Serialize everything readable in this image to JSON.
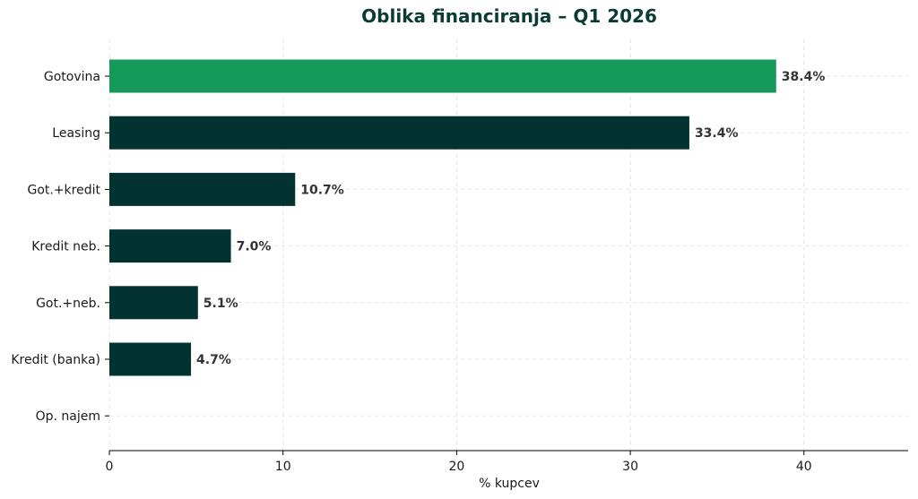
{
  "chart_data": {
    "type": "bar",
    "orientation": "horizontal",
    "title": "Oblika financiranja – Q1 2026",
    "xlabel": "% kupcev",
    "ylabel": "",
    "categories": [
      "Gotovina",
      "Leasing",
      "Got.+kredit",
      "Kredit neb.",
      "Got.+neb.",
      "Kredit (banka)",
      "Op. najem"
    ],
    "values": [
      38.4,
      33.4,
      10.7,
      7.0,
      5.1,
      4.7,
      0
    ],
    "data_labels": [
      "38.4%",
      "33.4%",
      "10.7%",
      "7.0%",
      "5.1%",
      "4.7%",
      ""
    ],
    "xlim": [
      0,
      46
    ],
    "xticks": [
      0,
      10,
      20,
      30,
      40
    ],
    "xtick_labels": [
      "0",
      "10",
      "20",
      "30",
      "40"
    ],
    "grid": true,
    "colors": {
      "highlight": "#159a5a",
      "default": "#033330",
      "title": "#0a3b34",
      "label": "#333333"
    }
  }
}
